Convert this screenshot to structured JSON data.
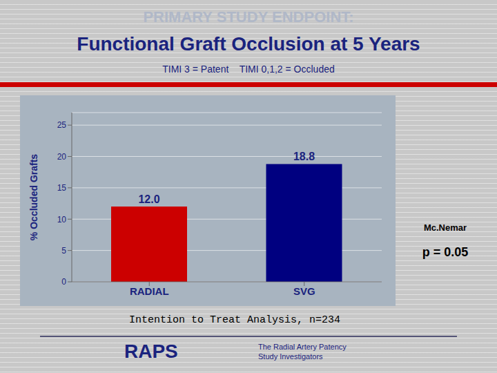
{
  "chart_data": {
    "type": "bar",
    "title": [
      "PRIMARY STUDY ENDPOINT:",
      "Functional Graft Occlusion at 5 Years"
    ],
    "subtitle": "TIMI 3 = Patent    TIMI 0,1,2 = Occluded",
    "categories": [
      "RADIAL",
      "SVG"
    ],
    "values": [
      12.0,
      18.8
    ],
    "value_labels": [
      "12.0",
      "18.8"
    ],
    "data_labels": true,
    "colors": [
      "#cc0000",
      "#000080"
    ],
    "ylabel": "% Occluded Grafts",
    "ylim": [
      0,
      27
    ],
    "yticks": [
      0,
      5,
      10,
      15,
      20,
      25
    ],
    "grid": true,
    "annotations": [
      "Mc.Nemar",
      "p = 0.05"
    ],
    "footnote": "Intention to Treat Analysis, n=234",
    "credit": [
      "RAPS",
      "The Radial Artery Patency",
      "Study Investigators"
    ]
  }
}
